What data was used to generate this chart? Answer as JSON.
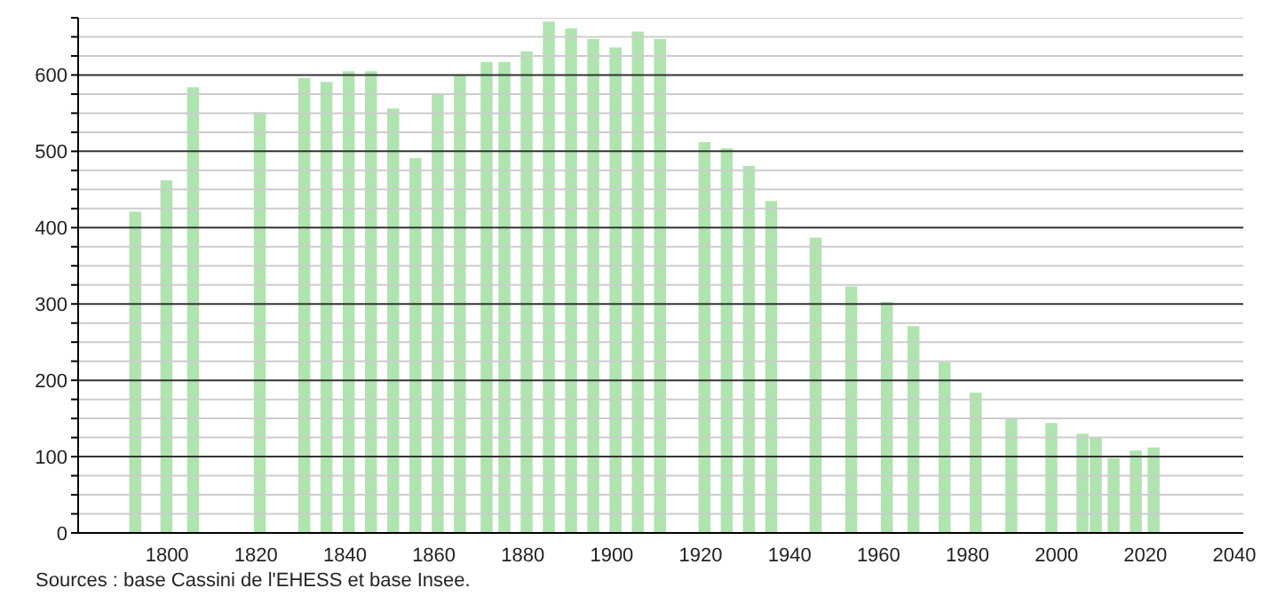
{
  "chart_data": {
    "type": "bar",
    "x": [
      1793,
      1800,
      1806,
      1821,
      1831,
      1836,
      1841,
      1846,
      1851,
      1856,
      1861,
      1866,
      1872,
      1876,
      1881,
      1886,
      1891,
      1896,
      1901,
      1906,
      1911,
      1921,
      1926,
      1931,
      1936,
      1946,
      1954,
      1962,
      1968,
      1975,
      1982,
      1990,
      1999,
      2006,
      2009,
      2013,
      2018,
      2022
    ],
    "values": [
      421,
      462,
      584,
      551,
      596,
      591,
      605,
      605,
      556,
      491,
      576,
      600,
      617,
      617,
      631,
      670,
      661,
      647,
      636,
      657,
      647,
      512,
      504,
      481,
      435,
      387,
      323,
      303,
      271,
      224,
      184,
      151,
      144,
      130,
      125,
      98,
      108,
      112
    ],
    "color": "#b0e3b0",
    "xlim": [
      1780,
      2042
    ],
    "xticks": [
      1800,
      1820,
      1840,
      1860,
      1880,
      1900,
      1920,
      1940,
      1960,
      1980,
      2000,
      2020,
      2040
    ],
    "ylim": [
      0,
      675
    ],
    "yticks": [
      0,
      {
        "value": 25,
        "label": null
      },
      {
        "value": 50,
        "label": null
      },
      {
        "value": 75,
        "label": null
      },
      100,
      {
        "value": 125,
        "label": null
      },
      {
        "value": 150,
        "label": null
      },
      {
        "value": 175,
        "label": null
      },
      200,
      {
        "value": 225,
        "label": null
      },
      {
        "value": 250,
        "label": null
      },
      {
        "value": 275,
        "label": null
      },
      300,
      {
        "value": 325,
        "label": null
      },
      {
        "value": 350,
        "label": null
      },
      {
        "value": 375,
        "label": null
      },
      400,
      {
        "value": 425,
        "label": null
      },
      {
        "value": 450,
        "label": null
      },
      {
        "value": 475,
        "label": null
      },
      500,
      {
        "value": 525,
        "label": null
      },
      {
        "value": 550,
        "label": null
      },
      {
        "value": 575,
        "label": null
      },
      600,
      {
        "value": 625,
        "label": null
      },
      {
        "value": 650,
        "label": null
      },
      {
        "value": 675,
        "label": null
      }
    ],
    "grid": "y",
    "annotations": [
      "Sources : base Cassini de l'EHESS et base Insee."
    ]
  }
}
